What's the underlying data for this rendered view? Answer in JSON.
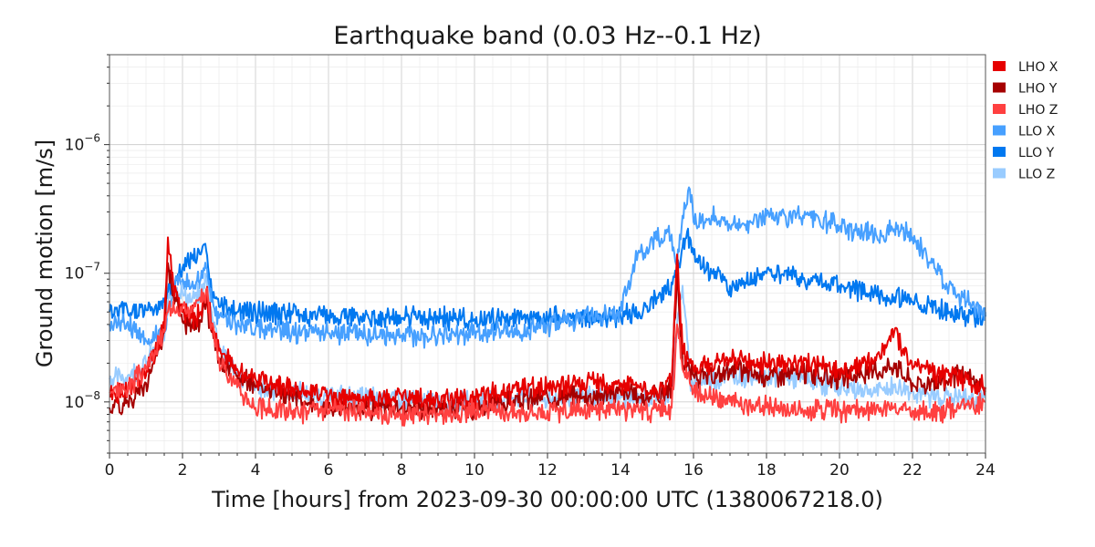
{
  "chart_data": {
    "type": "line",
    "title": "Earthquake band (0.03 Hz--0.1 Hz)",
    "xlabel": "Time [hours] from 2023-09-30 00:00:00 UTC (1380067218.0)",
    "ylabel": "Ground motion [m/s]",
    "xlim": [
      0,
      24
    ],
    "ylim": [
      4e-09,
      5e-06
    ],
    "yscale": "log",
    "grid": true,
    "legend_position": "top-right-outside",
    "x_ticks": [
      {
        "v": 0,
        "label": "0"
      },
      {
        "v": 2,
        "label": "2"
      },
      {
        "v": 4,
        "label": "4"
      },
      {
        "v": 6,
        "label": "6"
      },
      {
        "v": 8,
        "label": "8"
      },
      {
        "v": 10,
        "label": "10"
      },
      {
        "v": 12,
        "label": "12"
      },
      {
        "v": 14,
        "label": "14"
      },
      {
        "v": 16,
        "label": "16"
      },
      {
        "v": 18,
        "label": "18"
      },
      {
        "v": 20,
        "label": "20"
      },
      {
        "v": 22,
        "label": "22"
      },
      {
        "v": 24,
        "label": "24"
      }
    ],
    "y_ticks": [
      {
        "v": 1e-08,
        "base": "10",
        "exp": "−8"
      },
      {
        "v": 1e-07,
        "base": "10",
        "exp": "−7"
      },
      {
        "v": 1e-06,
        "base": "10",
        "exp": "−6"
      }
    ],
    "x": [
      0,
      0.5,
      1,
      1.25,
      1.5,
      1.6,
      1.75,
      2,
      2.25,
      2.5,
      2.65,
      2.8,
      3,
      3.5,
      4,
      5,
      6,
      7,
      8,
      9,
      10,
      11,
      12,
      13,
      14,
      14.5,
      15,
      15.4,
      15.55,
      15.7,
      15.9,
      16,
      16.5,
      17,
      18,
      19,
      20,
      21,
      21.5,
      22,
      22.5,
      23,
      23.5,
      24
    ],
    "series": [
      {
        "name": "LHO X",
        "color": "#e60000",
        "values": [
          1.1e-08,
          1.2e-08,
          1.6e-08,
          2.5e-08,
          4e-08,
          1.9e-07,
          8e-08,
          5e-08,
          4.5e-08,
          5e-08,
          7e-08,
          4e-08,
          2.5e-08,
          1.8e-08,
          1.5e-08,
          1.3e-08,
          1.1e-08,
          1e-08,
          1.1e-08,
          1e-08,
          1.1e-08,
          1.2e-08,
          1.3e-08,
          1.4e-08,
          1.4e-08,
          1.3e-08,
          1.2e-08,
          1.4e-08,
          1.4e-07,
          2.5e-08,
          2e-08,
          1.8e-08,
          2e-08,
          2.2e-08,
          2e-08,
          2e-08,
          1.8e-08,
          2.1e-08,
          3.5e-08,
          1.8e-08,
          1.7e-08,
          1.6e-08,
          1.5e-08,
          1.3e-08
        ]
      },
      {
        "name": "LHO Y",
        "color": "#a60000",
        "values": [
          9e-09,
          1e-08,
          1.4e-08,
          2.2e-08,
          3.5e-08,
          1.2e-07,
          7e-08,
          4.2e-08,
          3.8e-08,
          4.2e-08,
          6e-08,
          3.5e-08,
          2.2e-08,
          1.6e-08,
          1.3e-08,
          1.1e-08,
          9e-09,
          9e-09,
          9e-09,
          9e-09,
          9e-09,
          1e-08,
          1.1e-08,
          1.1e-08,
          1.2e-08,
          1.1e-08,
          1.1e-08,
          1.3e-08,
          1e-07,
          2e-08,
          1.7e-08,
          1.6e-08,
          1.5e-08,
          1.8e-08,
          1.6e-08,
          1.7e-08,
          1.5e-08,
          1.7e-08,
          2e-08,
          1.4e-08,
          1.4e-08,
          1.5e-08,
          1.6e-08,
          1.2e-08
        ]
      },
      {
        "name": "LHO Z",
        "color": "#ff4040",
        "values": [
          1.2e-08,
          1.3e-08,
          1.8e-08,
          2.5e-08,
          3.5e-08,
          5e-08,
          6e-08,
          5.5e-08,
          5e-08,
          6e-08,
          7.5e-08,
          4e-08,
          2.2e-08,
          1.3e-08,
          9e-09,
          8.5e-09,
          8.5e-09,
          8.5e-09,
          8e-09,
          8e-09,
          8.5e-09,
          8.5e-09,
          8.5e-09,
          8.5e-09,
          9e-09,
          8.5e-09,
          8.5e-09,
          9e-09,
          4e-08,
          1.8e-08,
          1.4e-08,
          1.2e-08,
          1.1e-08,
          1e-08,
          9e-09,
          8.5e-09,
          8.5e-09,
          8.5e-09,
          9e-09,
          8.5e-09,
          8e-09,
          9e-09,
          9.5e-09,
          1e-08
        ]
      },
      {
        "name": "LLO X",
        "color": "#47a0ff",
        "values": [
          4e-08,
          4.2e-08,
          3e-08,
          3.2e-08,
          3.5e-08,
          5e-08,
          8e-08,
          9e-08,
          8e-08,
          9e-08,
          1.1e-07,
          6e-08,
          4.5e-08,
          4e-08,
          3.7e-08,
          3.5e-08,
          3.4e-08,
          3.3e-08,
          3.3e-08,
          3.3e-08,
          3.5e-08,
          3.5e-08,
          4e-08,
          4.5e-08,
          5e-08,
          1.5e-07,
          1.8e-07,
          2e-07,
          1.2e-07,
          2.8e-07,
          4.5e-07,
          2.5e-07,
          2.8e-07,
          2.3e-07,
          2.8e-07,
          2.8e-07,
          2.3e-07,
          2e-07,
          2.2e-07,
          1.9e-07,
          1.2e-07,
          8e-08,
          6e-08,
          5e-08
        ]
      },
      {
        "name": "LLO Y",
        "color": "#0078f0",
        "values": [
          5e-08,
          5e-08,
          5.2e-08,
          5.5e-08,
          6e-08,
          7e-08,
          8e-08,
          1.1e-07,
          1.3e-07,
          1.4e-07,
          1.5e-07,
          7e-08,
          5.5e-08,
          5e-08,
          5e-08,
          4.8e-08,
          4.7e-08,
          4.6e-08,
          4.5e-08,
          4.5e-08,
          4.4e-08,
          4.4e-08,
          4.5e-08,
          4.5e-08,
          4.7e-08,
          5e-08,
          6.5e-08,
          8.5e-08,
          1e-07,
          1.6e-07,
          1.9e-07,
          1.4e-07,
          1e-07,
          8e-08,
          1e-07,
          9e-08,
          8e-08,
          7e-08,
          6.5e-08,
          6e-08,
          5.5e-08,
          5e-08,
          4.7e-08,
          4.6e-08
        ]
      },
      {
        "name": "LLO Z",
        "color": "#99ccff",
        "values": [
          1.5e-08,
          1.6e-08,
          2e-08,
          2.6e-08,
          3e-08,
          6e-08,
          8e-08,
          7e-08,
          6e-08,
          7e-08,
          9e-08,
          5e-08,
          2.8e-08,
          1.6e-08,
          1.3e-08,
          1.2e-08,
          1.1e-08,
          1.1e-08,
          1.05e-08,
          1e-08,
          1e-08,
          1.1e-08,
          1.05e-08,
          1.1e-08,
          1.1e-08,
          1.05e-08,
          1.1e-08,
          1.2e-08,
          4e-08,
          8e-08,
          1.5e-08,
          1.4e-08,
          1.5e-08,
          1.6e-08,
          1.6e-08,
          1.5e-08,
          1.3e-08,
          1.2e-08,
          1.3e-08,
          1.2e-08,
          1.1e-08,
          1.1e-08,
          1.05e-08,
          1.1e-08
        ]
      }
    ]
  }
}
